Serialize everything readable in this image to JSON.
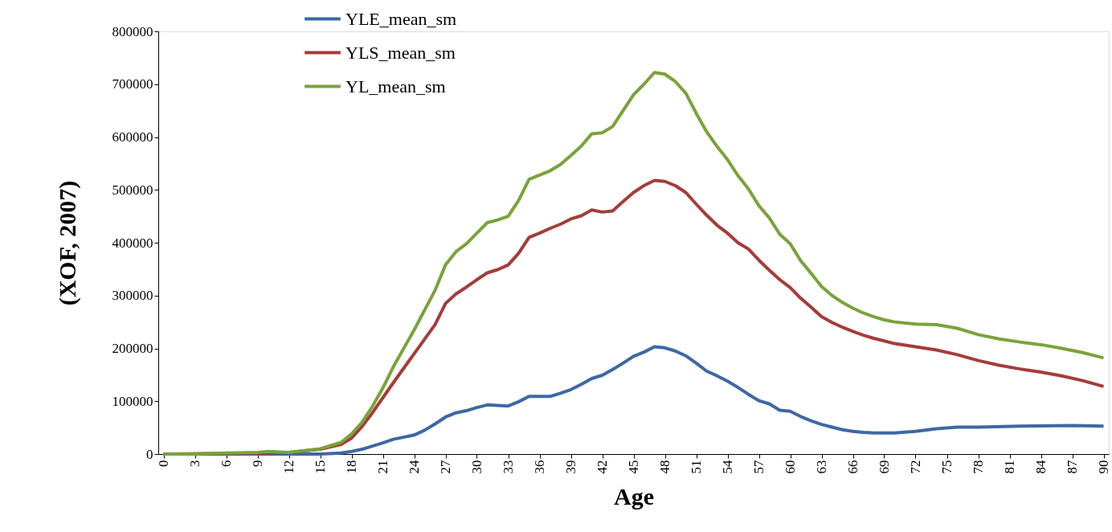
{
  "chart_data": {
    "type": "line",
    "xlabel": "Age",
    "ylabel": "(XOF, 2007)",
    "xlim": [
      -0.5,
      90.5
    ],
    "xticks": [
      0,
      3,
      6,
      9,
      12,
      15,
      18,
      21,
      24,
      27,
      30,
      33,
      36,
      39,
      42,
      45,
      48,
      51,
      54,
      57,
      60,
      63,
      66,
      69,
      72,
      75,
      78,
      81,
      84,
      87,
      90
    ],
    "ylim": [
      0,
      800000
    ],
    "yticks": [
      0,
      100000,
      200000,
      300000,
      400000,
      500000,
      600000,
      700000,
      800000
    ],
    "grid": false,
    "legend": "top left",
    "marker": "none",
    "line_style": "solid",
    "series": [
      {
        "name": "YLE_mean_sm",
        "color": "#3d68a4",
        "x": [
          0,
          12,
          15,
          17,
          18,
          19,
          20,
          21,
          22,
          24,
          25,
          26,
          27,
          28,
          29,
          30,
          31,
          33,
          34,
          35,
          37,
          38,
          39,
          40,
          41,
          42,
          43,
          44,
          45,
          46,
          47,
          48,
          49,
          50,
          51,
          52,
          53,
          54,
          55,
          56,
          57,
          58,
          59,
          60,
          61,
          62,
          63,
          64,
          65,
          66,
          67,
          68,
          69,
          70,
          72,
          74,
          76,
          78,
          82,
          87,
          90
        ],
        "values": [
          0,
          0,
          0,
          2000,
          5000,
          9000,
          15000,
          21000,
          28000,
          36000,
          45000,
          57000,
          70000,
          78000,
          82000,
          88000,
          93000,
          91000,
          99000,
          109000,
          109000,
          115000,
          122000,
          132000,
          143000,
          149000,
          160000,
          172000,
          185000,
          193000,
          203000,
          201000,
          195000,
          186000,
          172000,
          157000,
          148000,
          138000,
          126000,
          113000,
          101000,
          95000,
          83000,
          81000,
          71000,
          63000,
          56000,
          51000,
          46000,
          43000,
          41000,
          40000,
          40000,
          40000,
          43000,
          48000,
          51000,
          51000,
          53000,
          54000,
          53000
        ]
      },
      {
        "name": "YLS_mean_sm",
        "color": "#a53c3a",
        "x": [
          0,
          9,
          12,
          15,
          17,
          18,
          19,
          20,
          22,
          24,
          26,
          27,
          28,
          29,
          30,
          31,
          32,
          33,
          34,
          35,
          36,
          37,
          38,
          39,
          40,
          41,
          42,
          43,
          44,
          45,
          46,
          47,
          48,
          49,
          50,
          51,
          52,
          53,
          54,
          55,
          56,
          57,
          58,
          59,
          60,
          61,
          62,
          63,
          64,
          65,
          66,
          67,
          68,
          69,
          70,
          72,
          74,
          76,
          78,
          80,
          82,
          84,
          86,
          88,
          90
        ],
        "values": [
          0,
          2000,
          3000,
          9000,
          18000,
          30000,
          52000,
          78000,
          135000,
          190000,
          245000,
          285000,
          303000,
          316000,
          330000,
          343000,
          349000,
          358000,
          380000,
          410000,
          418000,
          427000,
          435000,
          445000,
          451000,
          462000,
          458000,
          460000,
          478000,
          495000,
          508000,
          518000,
          516000,
          508000,
          495000,
          473000,
          452000,
          433000,
          418000,
          400000,
          388000,
          367000,
          348000,
          330000,
          315000,
          295000,
          278000,
          260000,
          249000,
          240000,
          232000,
          225000,
          219000,
          214000,
          209000,
          203000,
          197000,
          188000,
          177000,
          168000,
          161000,
          155000,
          148000,
          139000,
          128000
        ]
      },
      {
        "name": "YL_mean_sm",
        "color": "#7aa33a",
        "x": [
          0,
          3,
          6,
          9,
          10,
          12,
          15,
          17,
          18,
          19,
          20,
          21,
          22,
          24,
          26,
          27,
          28,
          29,
          30,
          31,
          32,
          33,
          34,
          35,
          36,
          37,
          38,
          39,
          40,
          41,
          42,
          43,
          44,
          45,
          46,
          47,
          48,
          49,
          50,
          51,
          52,
          53,
          54,
          55,
          56,
          57,
          58,
          59,
          60,
          61,
          62,
          63,
          64,
          65,
          66,
          67,
          68,
          69,
          70,
          72,
          74,
          76,
          78,
          80,
          82,
          84,
          86,
          88,
          90
        ],
        "values": [
          0,
          0,
          2000,
          3000,
          5000,
          3000,
          10000,
          22000,
          38000,
          60000,
          90000,
          125000,
          165000,
          235000,
          310000,
          358000,
          383000,
          398000,
          418000,
          438000,
          443000,
          450000,
          480000,
          520000,
          528000,
          536000,
          548000,
          565000,
          583000,
          606000,
          608000,
          620000,
          650000,
          680000,
          700000,
          722000,
          719000,
          705000,
          683000,
          645000,
          610000,
          582000,
          557000,
          527000,
          502000,
          470000,
          447000,
          416000,
          398000,
          366000,
          342000,
          317000,
          300000,
          287000,
          276000,
          267000,
          260000,
          254000,
          250000,
          246000,
          245000,
          238000,
          226000,
          218000,
          212000,
          207000,
          200000,
          192000,
          182000
        ]
      }
    ]
  }
}
